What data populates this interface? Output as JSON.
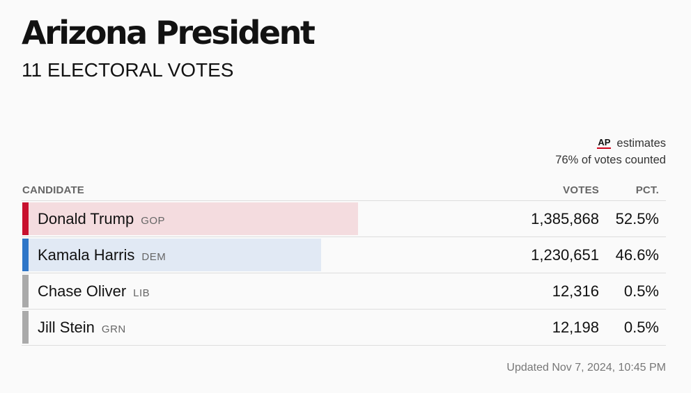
{
  "header": {
    "title": "Arizona President",
    "subtitle": "11 ELECTORAL VOTES"
  },
  "source": {
    "logo_text": "AP",
    "estimates_label": "estimates",
    "votes_counted": "76% of votes counted"
  },
  "table": {
    "columns": {
      "candidate": "CANDIDATE",
      "votes": "VOTES",
      "pct": "PCT."
    },
    "rows": [
      {
        "name": "Donald Trump",
        "party": "GOP",
        "votes": "1,385,868",
        "pct": "52.5%",
        "share": 52.5,
        "party_color": "#c8102e",
        "bar_color": "#f4dcdf"
      },
      {
        "name": "Kamala Harris",
        "party": "DEM",
        "votes": "1,230,651",
        "pct": "46.6%",
        "share": 46.6,
        "party_color": "#2e76c8",
        "bar_color": "#e1e9f4"
      },
      {
        "name": "Chase Oliver",
        "party": "LIB",
        "votes": "12,316",
        "pct": "0.5%",
        "share": 0.5,
        "party_color": "#aaaaaa",
        "bar_color": "#ececec"
      },
      {
        "name": "Jill Stein",
        "party": "GRN",
        "votes": "12,198",
        "pct": "0.5%",
        "share": 0.5,
        "party_color": "#aaaaaa",
        "bar_color": "#ececec"
      }
    ]
  },
  "footer": {
    "updated": "Updated Nov 7, 2024, 10:45 PM"
  }
}
